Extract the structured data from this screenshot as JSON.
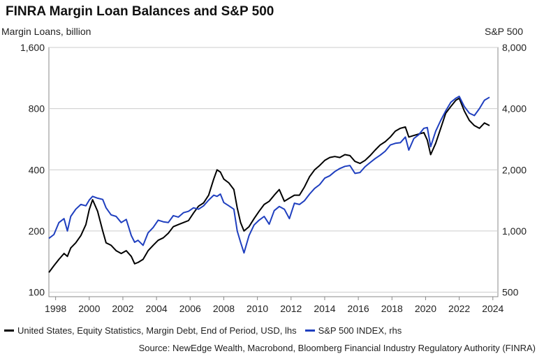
{
  "title": "FINRA Margin Loan Balances and S&P 500",
  "left_axis_title": "Margin Loans, billion",
  "right_axis_title": "S&P 500",
  "source": "Source: NewEdge Wealth, Macrobond, Bloomberg Financial Industry Regulatory Authority (FINRA)",
  "colors": {
    "margin": "#000000",
    "sp500": "#1f3fbf",
    "grid": "#cccccc",
    "axis": "#888888"
  },
  "chart_data": {
    "type": "line",
    "scale": "log",
    "xlim": [
      1997.6,
      2024.3
    ],
    "x_ticks": [
      1998,
      2000,
      2002,
      2004,
      2006,
      2008,
      2010,
      2012,
      2014,
      2016,
      2018,
      2020,
      2022,
      2024
    ],
    "left_axis": {
      "label": "Margin Loans, billion",
      "ticks": [
        100,
        200,
        400,
        800,
        1600
      ],
      "tick_labels": [
        "100",
        "200",
        "400",
        "800",
        "1,600"
      ],
      "ylim": [
        95,
        1600
      ]
    },
    "right_axis": {
      "label": "S&P 500",
      "ticks": [
        500,
        1000,
        2000,
        4000,
        8000
      ],
      "tick_labels": [
        "500",
        "1,000",
        "2,000",
        "4,000",
        "8,000"
      ],
      "ylim": [
        475,
        8000
      ]
    },
    "grid": true,
    "legend_position": "bottom",
    "series": [
      {
        "name": "United States, Equity Statistics, Margin Debt, End of Period, USD, lhs",
        "axis": "left",
        "color": "#000000",
        "x": [
          1997.6,
          1997.9,
          1998.2,
          1998.5,
          1998.7,
          1998.9,
          1999.2,
          1999.5,
          1999.8,
          2000.0,
          2000.2,
          2000.5,
          2000.8,
          2001.0,
          2001.3,
          2001.6,
          2001.9,
          2002.2,
          2002.5,
          2002.7,
          2002.9,
          2003.2,
          2003.5,
          2003.8,
          2004.1,
          2004.4,
          2004.7,
          2005.0,
          2005.3,
          2005.6,
          2005.9,
          2006.2,
          2006.5,
          2006.8,
          2007.1,
          2007.4,
          2007.6,
          2007.8,
          2008.0,
          2008.3,
          2008.6,
          2008.8,
          2009.0,
          2009.2,
          2009.5,
          2009.8,
          2010.1,
          2010.4,
          2010.7,
          2011.0,
          2011.3,
          2011.6,
          2011.9,
          2012.2,
          2012.5,
          2012.8,
          2013.1,
          2013.4,
          2013.7,
          2014.0,
          2014.3,
          2014.6,
          2014.9,
          2015.2,
          2015.5,
          2015.8,
          2016.1,
          2016.4,
          2016.7,
          2017.0,
          2017.3,
          2017.6,
          2017.9,
          2018.2,
          2018.5,
          2018.8,
          2019.0,
          2019.3,
          2019.6,
          2019.9,
          2020.1,
          2020.3,
          2020.6,
          2020.9,
          2021.2,
          2021.5,
          2021.8,
          2022.0,
          2022.3,
          2022.6,
          2022.9,
          2023.2,
          2023.5,
          2023.8
        ],
        "values": [
          125,
          135,
          145,
          155,
          150,
          165,
          175,
          190,
          215,
          255,
          285,
          250,
          200,
          175,
          170,
          160,
          155,
          160,
          150,
          138,
          140,
          145,
          160,
          170,
          180,
          185,
          195,
          210,
          215,
          220,
          225,
          245,
          265,
          275,
          300,
          360,
          400,
          390,
          360,
          345,
          320,
          260,
          220,
          200,
          210,
          230,
          250,
          270,
          280,
          300,
          320,
          280,
          290,
          300,
          300,
          330,
          370,
          400,
          420,
          445,
          460,
          465,
          460,
          475,
          470,
          440,
          430,
          445,
          470,
          500,
          530,
          550,
          580,
          620,
          640,
          650,
          580,
          590,
          600,
          610,
          560,
          475,
          540,
          640,
          760,
          820,
          880,
          900,
          780,
          700,
          660,
          640,
          680,
          660
        ]
      },
      {
        "name": "S&P 500 INDEX, rhs",
        "axis": "right",
        "color": "#1f3fbf",
        "x": [
          1997.6,
          1997.9,
          1998.2,
          1998.5,
          1998.7,
          1998.9,
          1999.2,
          1999.5,
          1999.8,
          2000.0,
          2000.2,
          2000.5,
          2000.8,
          2001.0,
          2001.3,
          2001.6,
          2001.9,
          2002.2,
          2002.5,
          2002.7,
          2002.9,
          2003.2,
          2003.5,
          2003.8,
          2004.1,
          2004.4,
          2004.7,
          2005.0,
          2005.3,
          2005.6,
          2005.9,
          2006.2,
          2006.5,
          2006.8,
          2007.1,
          2007.4,
          2007.6,
          2007.8,
          2008.0,
          2008.3,
          2008.6,
          2008.8,
          2009.0,
          2009.2,
          2009.5,
          2009.8,
          2010.1,
          2010.4,
          2010.7,
          2011.0,
          2011.3,
          2011.6,
          2011.9,
          2012.2,
          2012.5,
          2012.8,
          2013.1,
          2013.4,
          2013.7,
          2014.0,
          2014.3,
          2014.6,
          2014.9,
          2015.2,
          2015.5,
          2015.8,
          2016.1,
          2016.4,
          2016.7,
          2017.0,
          2017.3,
          2017.6,
          2017.9,
          2018.2,
          2018.5,
          2018.8,
          2019.0,
          2019.3,
          2019.6,
          2019.9,
          2020.1,
          2020.3,
          2020.6,
          2020.9,
          2021.2,
          2021.5,
          2021.8,
          2022.0,
          2022.3,
          2022.6,
          2022.9,
          2023.2,
          2023.5,
          2023.8
        ],
        "values": [
          920,
          960,
          1100,
          1150,
          1000,
          1180,
          1280,
          1350,
          1330,
          1420,
          1480,
          1450,
          1430,
          1300,
          1200,
          1180,
          1100,
          1140,
          950,
          880,
          900,
          850,
          980,
          1040,
          1130,
          1110,
          1100,
          1190,
          1170,
          1230,
          1250,
          1300,
          1280,
          1330,
          1420,
          1500,
          1480,
          1520,
          1380,
          1330,
          1280,
          1000,
          880,
          780,
          950,
          1070,
          1130,
          1180,
          1080,
          1260,
          1320,
          1280,
          1150,
          1370,
          1350,
          1410,
          1520,
          1620,
          1690,
          1820,
          1870,
          1960,
          2030,
          2080,
          2100,
          1920,
          1940,
          2070,
          2170,
          2270,
          2360,
          2470,
          2650,
          2700,
          2720,
          2900,
          2500,
          2850,
          2980,
          3200,
          3230,
          2600,
          3100,
          3500,
          3900,
          4300,
          4500,
          4600,
          4100,
          3800,
          3700,
          4000,
          4400,
          4550
        ]
      }
    ]
  }
}
